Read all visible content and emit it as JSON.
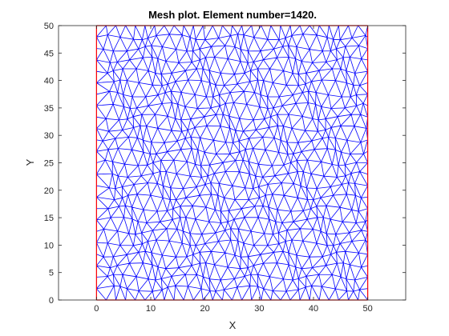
{
  "chart_data": {
    "type": "mesh",
    "title": "Mesh plot. Element number=1420.",
    "xlabel": "X",
    "ylabel": "Y",
    "xlim": [
      -7,
      57
    ],
    "ylim": [
      0,
      50
    ],
    "domain": {
      "x": [
        0,
        50
      ],
      "y": [
        0,
        50
      ]
    },
    "element_number": 1420,
    "x_ticks": [
      0,
      10,
      20,
      30,
      40,
      50
    ],
    "y_ticks": [
      0,
      5,
      10,
      15,
      20,
      25,
      30,
      35,
      40,
      45,
      50
    ],
    "x_tick_labels": [
      "0",
      "10",
      "20",
      "30",
      "40",
      "50"
    ],
    "y_tick_labels": [
      "0",
      "5",
      "10",
      "15",
      "20",
      "25",
      "30",
      "35",
      "40",
      "45",
      "50"
    ],
    "mesh_color": "#0000ff",
    "boundary_color": "#ff0000",
    "grid": false
  }
}
